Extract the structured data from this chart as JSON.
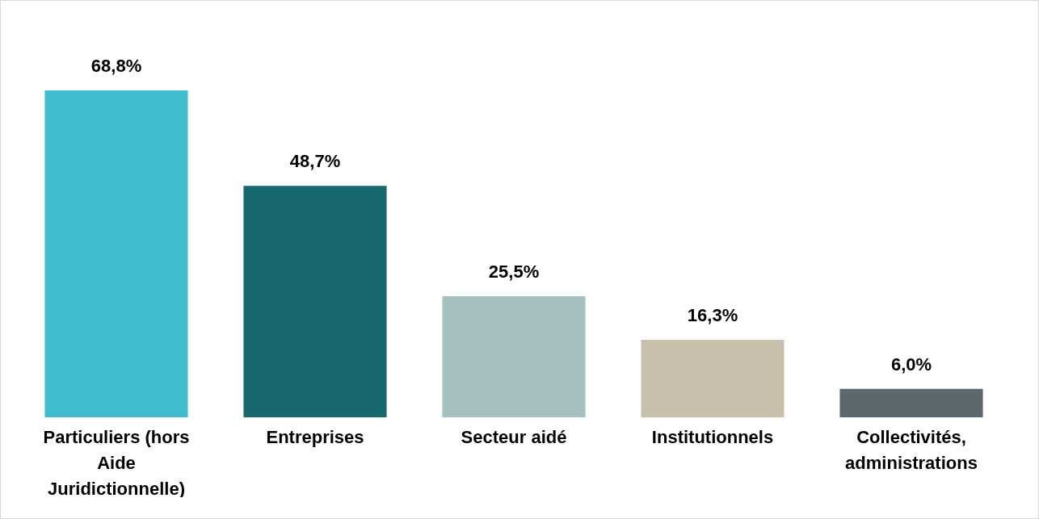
{
  "chart_data": {
    "type": "bar",
    "categories": [
      "Particuliers (hors Aide Juridictionnelle)",
      "Entreprises",
      "Secteur aidé",
      "Institutionnels",
      "Collectivités, administrations"
    ],
    "values": [
      68.8,
      48.7,
      25.5,
      16.3,
      6.0
    ],
    "colors": [
      "#40bccd",
      "#17696e",
      "#a6bfbf",
      "#c9bfad",
      "#5d676e"
    ],
    "value_labels": [
      "68,8%",
      "48,7%",
      "25,5%",
      "16,3%",
      "6,0%"
    ],
    "grid": false
  }
}
